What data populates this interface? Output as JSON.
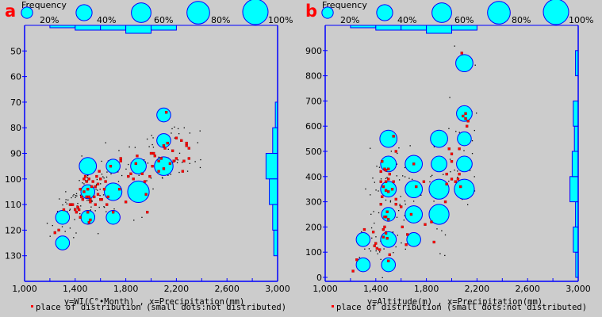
{
  "colors": {
    "background": "#cccccc",
    "axis": "#0000ff",
    "bubble_fill": "#00ffff",
    "bubble_stroke": "#0000ff",
    "distribution_marker": "#ff0000",
    "dot": "#000000",
    "panel_letter": "#ff0000"
  },
  "legend": {
    "title": "Frequency",
    "sizes": [
      "20%",
      "40%",
      "60%",
      "80%",
      "100%"
    ],
    "size_values": [
      0.2,
      0.4,
      0.6,
      0.8,
      1.0
    ]
  },
  "footer_note": "place of distribution (small dots:not distributed)",
  "chart_data": [
    {
      "panel": "a",
      "type": "scatter",
      "title": "",
      "xlabel": "y=WI(C°•Month) , x=Precipitation(mm)",
      "ylabel": "",
      "xlim": [
        1000,
        3000
      ],
      "ylim": [
        140,
        40
      ],
      "y_inverted": true,
      "x_ticks": [
        1000,
        1200,
        1400,
        1600,
        1800,
        2000,
        2200,
        2400,
        2600,
        2800,
        3000
      ],
      "x_tick_labels": [
        "1,000",
        "1,400",
        "1,800",
        "2,200",
        "2,600",
        "3,000"
      ],
      "x_tick_label_values": [
        1000,
        1400,
        1800,
        2200,
        2600,
        3000
      ],
      "y_ticks": [
        50,
        60,
        70,
        80,
        90,
        100,
        110,
        120,
        130
      ],
      "y_tick_labels": [
        "50",
        "60",
        "70",
        "80",
        "90",
        "100",
        "110",
        "120",
        "130"
      ],
      "bubbles": [
        {
          "x": 1300,
          "y": 125,
          "freq": 0.3
        },
        {
          "x": 1300,
          "y": 115,
          "freq": 0.3
        },
        {
          "x": 1500,
          "y": 115,
          "freq": 0.3
        },
        {
          "x": 1700,
          "y": 115,
          "freq": 0.3
        },
        {
          "x": 1500,
          "y": 105,
          "freq": 0.3
        },
        {
          "x": 1700,
          "y": 105,
          "freq": 0.48
        },
        {
          "x": 1900,
          "y": 105,
          "freq": 0.72
        },
        {
          "x": 1500,
          "y": 95,
          "freq": 0.46
        },
        {
          "x": 1700,
          "y": 95,
          "freq": 0.3
        },
        {
          "x": 1900,
          "y": 95,
          "freq": 0.38
        },
        {
          "x": 2100,
          "y": 95,
          "freq": 0.54
        },
        {
          "x": 2100,
          "y": 85,
          "freq": 0.3
        },
        {
          "x": 2100,
          "y": 75,
          "freq": 0.3
        }
      ],
      "distribution_points": [
        [
          1240,
          121
        ],
        [
          1270,
          120
        ],
        [
          1310,
          112
        ],
        [
          1360,
          110
        ],
        [
          1370,
          110
        ],
        [
          1380,
          110
        ],
        [
          1400,
          112
        ],
        [
          1410,
          113
        ],
        [
          1420,
          111
        ],
        [
          1430,
          112
        ],
        [
          1450,
          107
        ],
        [
          1440,
          115
        ],
        [
          1460,
          108
        ],
        [
          1470,
          100
        ],
        [
          1480,
          99
        ],
        [
          1490,
          101
        ],
        [
          1500,
          104
        ],
        [
          1510,
          100
        ],
        [
          1510,
          107
        ],
        [
          1520,
          109
        ],
        [
          1520,
          108
        ],
        [
          1530,
          103
        ],
        [
          1540,
          101
        ],
        [
          1550,
          107
        ],
        [
          1560,
          103
        ],
        [
          1570,
          99
        ],
        [
          1580,
          102
        ],
        [
          1590,
          97
        ],
        [
          1600,
          100
        ],
        [
          1610,
          108
        ],
        [
          1630,
          104
        ],
        [
          1640,
          101
        ],
        [
          1650,
          110
        ],
        [
          1660,
          107
        ],
        [
          1680,
          95
        ],
        [
          1700,
          113
        ],
        [
          1750,
          104
        ],
        [
          1760,
          92
        ],
        [
          1760,
          93
        ],
        [
          1800,
          109
        ],
        [
          1820,
          99
        ],
        [
          1840,
          98
        ],
        [
          1860,
          100
        ],
        [
          1880,
          94
        ],
        [
          1890,
          91
        ],
        [
          1930,
          98
        ],
        [
          1950,
          101
        ],
        [
          1960,
          106
        ],
        [
          1970,
          113
        ],
        [
          1990,
          99
        ],
        [
          2000,
          90
        ],
        [
          2010,
          95
        ],
        [
          2020,
          90
        ],
        [
          2030,
          91
        ],
        [
          2060,
          97
        ],
        [
          2080,
          92
        ],
        [
          2100,
          87
        ],
        [
          2110,
          88
        ],
        [
          2130,
          86
        ],
        [
          2180,
          93
        ],
        [
          2060,
          93
        ],
        [
          2200,
          92
        ],
        [
          2260,
          93
        ],
        [
          2300,
          92
        ],
        [
          2200,
          84
        ],
        [
          2240,
          85
        ],
        [
          2280,
          87
        ],
        [
          2120,
          74
        ],
        [
          2280,
          86
        ],
        [
          2300,
          88
        ],
        [
          2100,
          96
        ],
        [
          2150,
          94
        ],
        [
          2170,
          89
        ],
        [
          2250,
          97
        ],
        [
          1510,
          117
        ],
        [
          1520,
          116
        ],
        [
          1500,
          113
        ],
        [
          1440,
          104
        ],
        [
          1470,
          105
        ],
        [
          1490,
          107
        ],
        [
          1560,
          110
        ],
        [
          1580,
          106
        ],
        [
          1600,
          108
        ]
      ],
      "marginal_x_histogram": {
        "bins": [
          [
            1200,
            1400
          ],
          [
            1400,
            1600
          ],
          [
            1600,
            1800
          ],
          [
            1800,
            2000
          ],
          [
            2000,
            2200
          ]
        ],
        "freq": [
          0.05,
          0.2,
          0.2,
          0.4,
          0.2
        ]
      },
      "marginal_y_histogram": {
        "bins": [
          [
            70,
            80
          ],
          [
            80,
            90
          ],
          [
            90,
            100
          ],
          [
            100,
            110
          ],
          [
            110,
            120
          ],
          [
            120,
            130
          ]
        ],
        "freq": [
          0.03,
          0.15,
          0.45,
          0.3,
          0.15,
          0.1
        ]
      }
    },
    {
      "panel": "b",
      "type": "scatter",
      "title": "",
      "xlabel": "y=Altitude(m) , x=Precipitation(mm)",
      "ylabel": "",
      "xlim": [
        1000,
        3000
      ],
      "ylim": [
        0,
        1000
      ],
      "x_ticks": [
        1000,
        1200,
        1400,
        1600,
        1800,
        2000,
        2200,
        2400,
        2600,
        2800,
        3000
      ],
      "x_tick_labels": [
        "1,000",
        "1,400",
        "1,800",
        "2,200",
        "2,600",
        "3,000"
      ],
      "x_tick_label_values": [
        1000,
        1400,
        1800,
        2200,
        2600,
        3000
      ],
      "y_ticks": [
        0,
        100,
        200,
        300,
        400,
        500,
        600,
        700,
        800,
        900
      ],
      "y_tick_labels": [
        "0",
        "100",
        "200",
        "300",
        "400",
        "500",
        "600",
        "700",
        "800",
        "900"
      ],
      "bubbles": [
        {
          "x": 1300,
          "y": 50,
          "freq": 0.3
        },
        {
          "x": 1500,
          "y": 50,
          "freq": 0.3
        },
        {
          "x": 1300,
          "y": 150,
          "freq": 0.3
        },
        {
          "x": 1500,
          "y": 150,
          "freq": 0.38
        },
        {
          "x": 1700,
          "y": 150,
          "freq": 0.3
        },
        {
          "x": 1500,
          "y": 250,
          "freq": 0.3
        },
        {
          "x": 1700,
          "y": 250,
          "freq": 0.46
        },
        {
          "x": 1900,
          "y": 250,
          "freq": 0.62
        },
        {
          "x": 1500,
          "y": 350,
          "freq": 0.38
        },
        {
          "x": 1700,
          "y": 350,
          "freq": 0.46
        },
        {
          "x": 1900,
          "y": 350,
          "freq": 0.62
        },
        {
          "x": 2100,
          "y": 350,
          "freq": 0.62
        },
        {
          "x": 1500,
          "y": 450,
          "freq": 0.38
        },
        {
          "x": 1700,
          "y": 450,
          "freq": 0.46
        },
        {
          "x": 1900,
          "y": 450,
          "freq": 0.38
        },
        {
          "x": 2100,
          "y": 450,
          "freq": 0.38
        },
        {
          "x": 1500,
          "y": 550,
          "freq": 0.46
        },
        {
          "x": 1900,
          "y": 550,
          "freq": 0.46
        },
        {
          "x": 2100,
          "y": 550,
          "freq": 0.3
        },
        {
          "x": 2100,
          "y": 650,
          "freq": 0.38
        },
        {
          "x": 2100,
          "y": 850,
          "freq": 0.46
        }
      ],
      "distribution_points": [
        [
          1220,
          25
        ],
        [
          1250,
          70
        ],
        [
          1310,
          190
        ],
        [
          1380,
          180
        ],
        [
          1400,
          135
        ],
        [
          1410,
          115
        ],
        [
          1390,
          125
        ],
        [
          1430,
          110
        ],
        [
          1460,
          190
        ],
        [
          1470,
          200
        ],
        [
          1480,
          175
        ],
        [
          1490,
          155
        ],
        [
          1510,
          90
        ],
        [
          1500,
          65
        ],
        [
          1460,
          160
        ],
        [
          1480,
          240
        ],
        [
          1490,
          260
        ],
        [
          1500,
          230
        ],
        [
          1470,
          240
        ],
        [
          1440,
          290
        ],
        [
          1450,
          320
        ],
        [
          1480,
          345
        ],
        [
          1500,
          340
        ],
        [
          1460,
          360
        ],
        [
          1480,
          380
        ],
        [
          1440,
          380
        ],
        [
          1500,
          390
        ],
        [
          1530,
          350
        ],
        [
          1540,
          380
        ],
        [
          1560,
          310
        ],
        [
          1560,
          290
        ],
        [
          1470,
          430
        ],
        [
          1480,
          425
        ],
        [
          1500,
          430
        ],
        [
          1510,
          410
        ],
        [
          1440,
          420
        ],
        [
          1450,
          460
        ],
        [
          1560,
          500
        ],
        [
          1540,
          560
        ],
        [
          1650,
          170
        ],
        [
          1610,
          200
        ],
        [
          1600,
          280
        ],
        [
          1640,
          130
        ],
        [
          1680,
          250
        ],
        [
          1720,
          360
        ],
        [
          1700,
          450
        ],
        [
          1780,
          380
        ],
        [
          1790,
          210
        ],
        [
          1840,
          220
        ],
        [
          1860,
          140
        ],
        [
          1960,
          370
        ],
        [
          1950,
          300
        ],
        [
          1960,
          410
        ],
        [
          1980,
          510
        ],
        [
          2000,
          390
        ],
        [
          2000,
          460
        ],
        [
          2000,
          490
        ],
        [
          2030,
          380
        ],
        [
          2050,
          390
        ],
        [
          2060,
          410
        ],
        [
          2070,
          360
        ],
        [
          2090,
          640
        ],
        [
          2110,
          650
        ],
        [
          2120,
          600
        ],
        [
          2130,
          620
        ],
        [
          2080,
          890
        ],
        [
          2110,
          630
        ],
        [
          2060,
          510
        ]
      ],
      "marginal_x_histogram": {
        "bins": [
          [
            1200,
            1400
          ],
          [
            1400,
            1600
          ],
          [
            1600,
            1800
          ],
          [
            1800,
            2000
          ],
          [
            2000,
            2200
          ]
        ],
        "freq": [
          0.05,
          0.2,
          0.2,
          0.4,
          0.2
        ]
      },
      "marginal_y_histogram": {
        "bins": [
          [
            0,
            100
          ],
          [
            100,
            200
          ],
          [
            200,
            300
          ],
          [
            300,
            400
          ],
          [
            400,
            500
          ],
          [
            500,
            600
          ],
          [
            600,
            700
          ],
          [
            800,
            900
          ]
        ],
        "freq": [
          0.04,
          0.15,
          0.05,
          0.3,
          0.2,
          0.1,
          0.15,
          0.05
        ]
      }
    }
  ]
}
